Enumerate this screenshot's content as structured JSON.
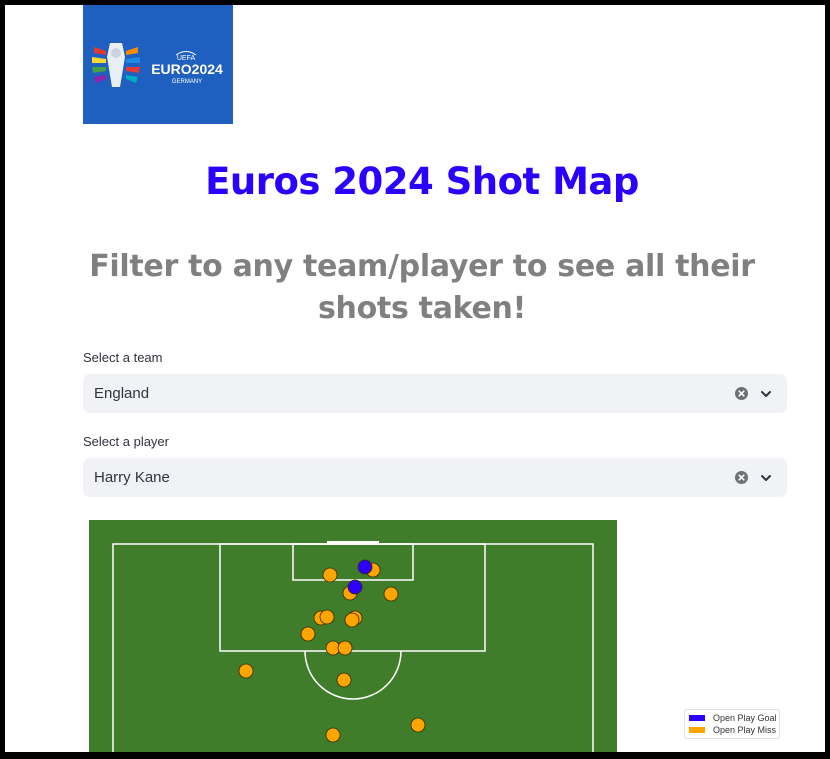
{
  "logo": {
    "uefa_text": "UEFA",
    "euro_text": "EURO2024",
    "country_text": "GERMANY"
  },
  "title": "Euros 2024 Shot Map",
  "subtitle": "Filter to any team/player to see all their shots taken!",
  "team_select": {
    "label": "Select a team",
    "value": "England"
  },
  "player_select": {
    "label": "Select a player",
    "value": "Harry Kane"
  },
  "shot_map": {
    "legend": [
      {
        "label": "Open Play Goal",
        "color": "#2b00ff"
      },
      {
        "label": "Open Play Miss",
        "color": "#ffa500"
      }
    ],
    "pitch_color": "#3f7d2a",
    "line_color": "#ffffff"
  },
  "colors": {
    "title": "#2b00ff",
    "subtitle": "#808080",
    "logo_bg": "#1f5fbf"
  }
}
